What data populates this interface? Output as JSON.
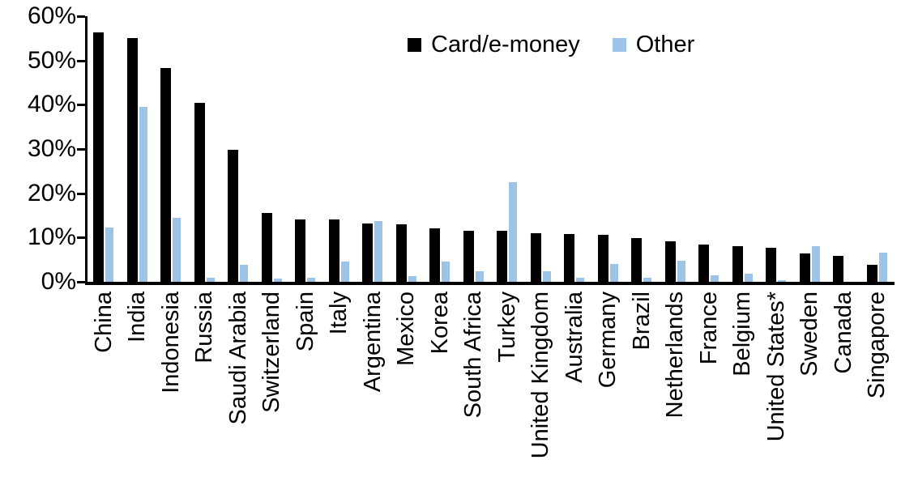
{
  "chart_data": {
    "type": "bar",
    "title": "",
    "xlabel": "",
    "ylabel": "",
    "ylim": [
      0,
      60
    ],
    "grid": false,
    "legend_position": "top-center-inside",
    "categories": [
      "China",
      "India",
      "Indonesia",
      "Russia",
      "Saudi Arabia",
      "Switzerland",
      "Spain",
      "Italy",
      "Argentina",
      "Mexico",
      "Korea",
      "South Africa",
      "Turkey",
      "United Kingdom",
      "Australia",
      "Germany",
      "Brazil",
      "Netherlands",
      "France",
      "Belgium",
      "United States*",
      "Sweden",
      "Canada",
      "Singapore"
    ],
    "series": [
      {
        "name": "Card/e-money",
        "color": "#000000",
        "values": [
          56.3,
          55.0,
          48.3,
          40.5,
          29.8,
          15.6,
          14.1,
          14.0,
          13.2,
          12.9,
          12.1,
          11.6,
          11.5,
          11.0,
          10.8,
          10.6,
          9.9,
          9.2,
          8.5,
          8.1,
          7.7,
          6.4,
          5.8,
          3.8
        ]
      },
      {
        "name": "Other",
        "color": "#9DC3E6",
        "values": [
          12.2,
          39.6,
          14.5,
          1.0,
          3.8,
          0.8,
          1.0,
          4.5,
          13.7,
          1.2,
          4.5,
          2.4,
          22.5,
          2.3,
          0.9,
          4.0,
          1.0,
          4.8,
          1.5,
          1.9,
          0.3,
          8.1,
          0,
          6.6
        ]
      }
    ],
    "yticks": [
      {
        "value": 60,
        "label": "60%"
      },
      {
        "value": 50,
        "label": "50%"
      },
      {
        "value": 40,
        "label": "40%"
      },
      {
        "value": 30,
        "label": "30%"
      },
      {
        "value": 20,
        "label": "20%"
      },
      {
        "value": 10,
        "label": "10%"
      },
      {
        "value": 0,
        "label": "0%"
      }
    ]
  }
}
